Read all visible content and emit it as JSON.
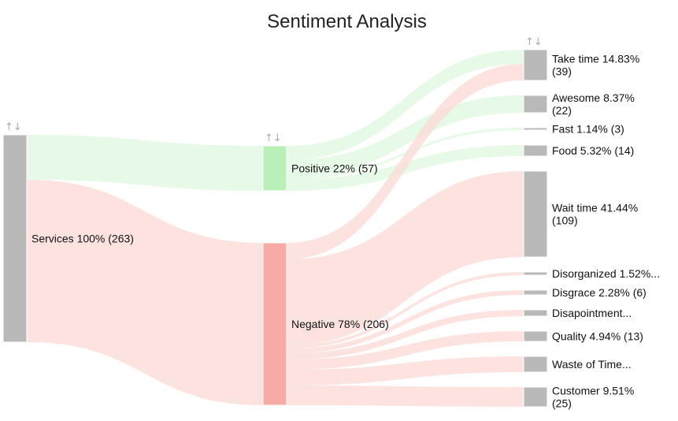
{
  "chart_data": {
    "type": "sankey",
    "title": "Sentiment Analysis",
    "colors": {
      "positive_node": "#b8f0b8",
      "positive_link": "#dff7df",
      "negative_node": "#f8aaa6",
      "negative_link": "#fbd9d6",
      "neutral_node": "#b9b9b9"
    },
    "sort_icon": "↑↓",
    "nodes": [
      {
        "id": "services",
        "column": 0,
        "value": 263,
        "color": "neutral_node",
        "label_lines": [
          "Services 100% (263)"
        ]
      },
      {
        "id": "positive",
        "column": 1,
        "value": 57,
        "color": "positive_node",
        "label_lines": [
          "Positive 22% (57)"
        ]
      },
      {
        "id": "negative",
        "column": 1,
        "value": 206,
        "color": "negative_node",
        "label_lines": [
          "Negative 78% (206)"
        ]
      },
      {
        "id": "take_time",
        "column": 2,
        "value": 39,
        "color": "neutral_node",
        "label_lines": [
          "Take time 14.83%",
          "(39)"
        ]
      },
      {
        "id": "awesome",
        "column": 2,
        "value": 22,
        "color": "neutral_node",
        "label_lines": [
          "Awesome 8.37%",
          "(22)"
        ]
      },
      {
        "id": "fast",
        "column": 2,
        "value": 3,
        "color": "neutral_node",
        "label_lines": [
          "Fast 1.14% (3)"
        ]
      },
      {
        "id": "food",
        "column": 2,
        "value": 14,
        "color": "neutral_node",
        "label_lines": [
          "Food 5.32% (14)"
        ]
      },
      {
        "id": "wait_time",
        "column": 2,
        "value": 109,
        "color": "neutral_node",
        "label_lines": [
          "Wait time 41.44%",
          "(109)"
        ]
      },
      {
        "id": "disorganized",
        "column": 2,
        "value": 4,
        "color": "neutral_node",
        "label_lines": [
          "Disorganized 1.52%..."
        ]
      },
      {
        "id": "disgrace",
        "column": 2,
        "value": 6,
        "color": "neutral_node",
        "label_lines": [
          "Disgrace 2.28% (6)"
        ]
      },
      {
        "id": "disappointment",
        "column": 2,
        "value": 8,
        "color": "neutral_node",
        "label_lines": [
          "Disapointment..."
        ]
      },
      {
        "id": "quality",
        "column": 2,
        "value": 13,
        "color": "neutral_node",
        "label_lines": [
          "Quality 4.94% (13)"
        ]
      },
      {
        "id": "waste_of_time",
        "column": 2,
        "value": 20,
        "color": "neutral_node",
        "label_lines": [
          "Waste of Time..."
        ]
      },
      {
        "id": "customer",
        "column": 2,
        "value": 25,
        "color": "neutral_node",
        "label_lines": [
          "Customer 9.51%",
          "(25)"
        ]
      }
    ],
    "links": [
      {
        "source": "services",
        "target": "positive",
        "value": 57,
        "color": "positive_link"
      },
      {
        "source": "services",
        "target": "negative",
        "value": 206,
        "color": "negative_link"
      },
      {
        "source": "positive",
        "target": "take_time",
        "value": 18,
        "color": "positive_link"
      },
      {
        "source": "positive",
        "target": "awesome",
        "value": 22,
        "color": "positive_link"
      },
      {
        "source": "positive",
        "target": "fast",
        "value": 3,
        "color": "positive_link"
      },
      {
        "source": "positive",
        "target": "food",
        "value": 14,
        "color": "positive_link"
      },
      {
        "source": "negative",
        "target": "take_time",
        "value": 21,
        "color": "negative_link"
      },
      {
        "source": "negative",
        "target": "wait_time",
        "value": 109,
        "color": "negative_link"
      },
      {
        "source": "negative",
        "target": "disorganized",
        "value": 4,
        "color": "negative_link"
      },
      {
        "source": "negative",
        "target": "disgrace",
        "value": 6,
        "color": "negative_link"
      },
      {
        "source": "negative",
        "target": "disappointment",
        "value": 8,
        "color": "negative_link"
      },
      {
        "source": "negative",
        "target": "quality",
        "value": 13,
        "color": "negative_link"
      },
      {
        "source": "negative",
        "target": "waste_of_time",
        "value": 20,
        "color": "negative_link"
      },
      {
        "source": "negative",
        "target": "customer",
        "value": 25,
        "color": "negative_link"
      }
    ]
  }
}
